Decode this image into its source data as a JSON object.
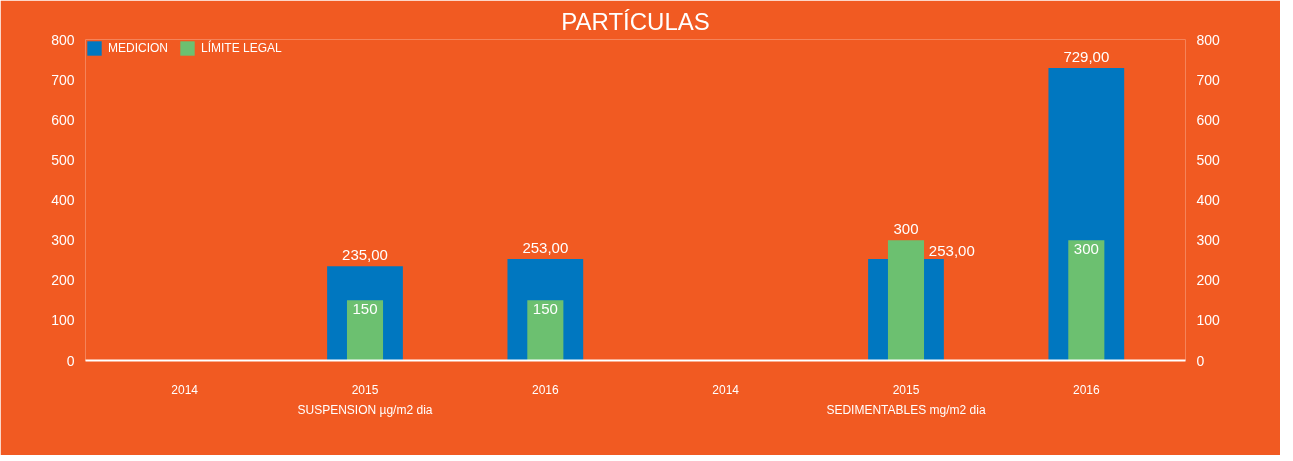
{
  "chart_data": {
    "type": "bar",
    "title": "PARTÍCULAS",
    "categories": [
      "2014",
      "2015",
      "2016",
      "2014",
      "2015",
      "2016"
    ],
    "series": [
      {
        "name": "MEDICION",
        "color": "#0077c0",
        "values": [
          null,
          235,
          253,
          null,
          253,
          729
        ],
        "value_labels": [
          null,
          "235,00",
          "253,00",
          null,
          "253,00",
          "729,00"
        ]
      },
      {
        "name": "LÍMITE LEGAL",
        "color": "#6cc070",
        "values": [
          null,
          150,
          150,
          null,
          300,
          300
        ],
        "value_labels": [
          null,
          "150",
          "150",
          null,
          "300",
          "300"
        ]
      }
    ],
    "annotations": [
      "SUSPENSION µg/m2 dia",
      "SEDIMENTABLES mg/m2 dia"
    ],
    "ylim": [
      0,
      800
    ],
    "yticks": [
      0,
      100,
      200,
      300,
      400,
      500,
      600,
      700,
      800
    ],
    "y2lim": [
      0,
      800
    ],
    "y2ticks": [
      0,
      100,
      200,
      300,
      400,
      500,
      600,
      700,
      800
    ],
    "grid": false,
    "legend": "top left"
  }
}
